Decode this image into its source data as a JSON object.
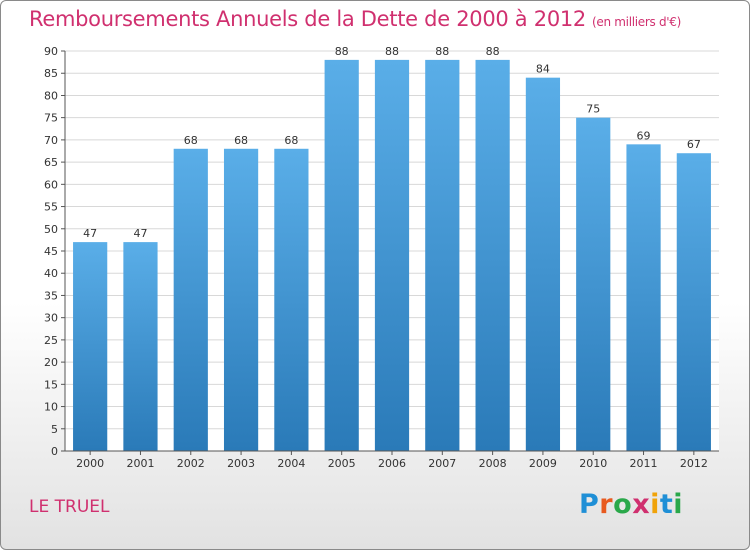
{
  "header": {
    "title": "Remboursements Annuels de la Dette de 2000 à 2012",
    "unit": "(en milliers d'€)"
  },
  "footer": {
    "place": "LE TRUEL",
    "logo_letters": [
      "P",
      "r",
      "o",
      "x",
      "i",
      "t",
      "i"
    ],
    "logo_colors": [
      "#1f8fd6",
      "#e85a1f",
      "#2aa84a",
      "#d0306f",
      "#f0a30a",
      "#1f8fd6",
      "#2aa84a"
    ]
  },
  "chart_data": {
    "type": "bar",
    "title": "Remboursements Annuels de la Dette de 2000 à 2012",
    "categories": [
      "2000",
      "2001",
      "2002",
      "2003",
      "2004",
      "2005",
      "2006",
      "2007",
      "2008",
      "2009",
      "2010",
      "2011",
      "2012"
    ],
    "values": [
      47,
      47,
      68,
      68,
      68,
      88,
      88,
      88,
      88,
      84,
      75,
      69,
      67
    ],
    "ylim": [
      0,
      90
    ],
    "yticks": [
      0,
      5,
      10,
      15,
      20,
      25,
      30,
      35,
      40,
      45,
      50,
      55,
      60,
      65,
      70,
      75,
      80,
      85,
      90
    ],
    "grid": true,
    "bar_color_top": "#5aaee8",
    "bar_color_bottom": "#2a7ab8"
  }
}
